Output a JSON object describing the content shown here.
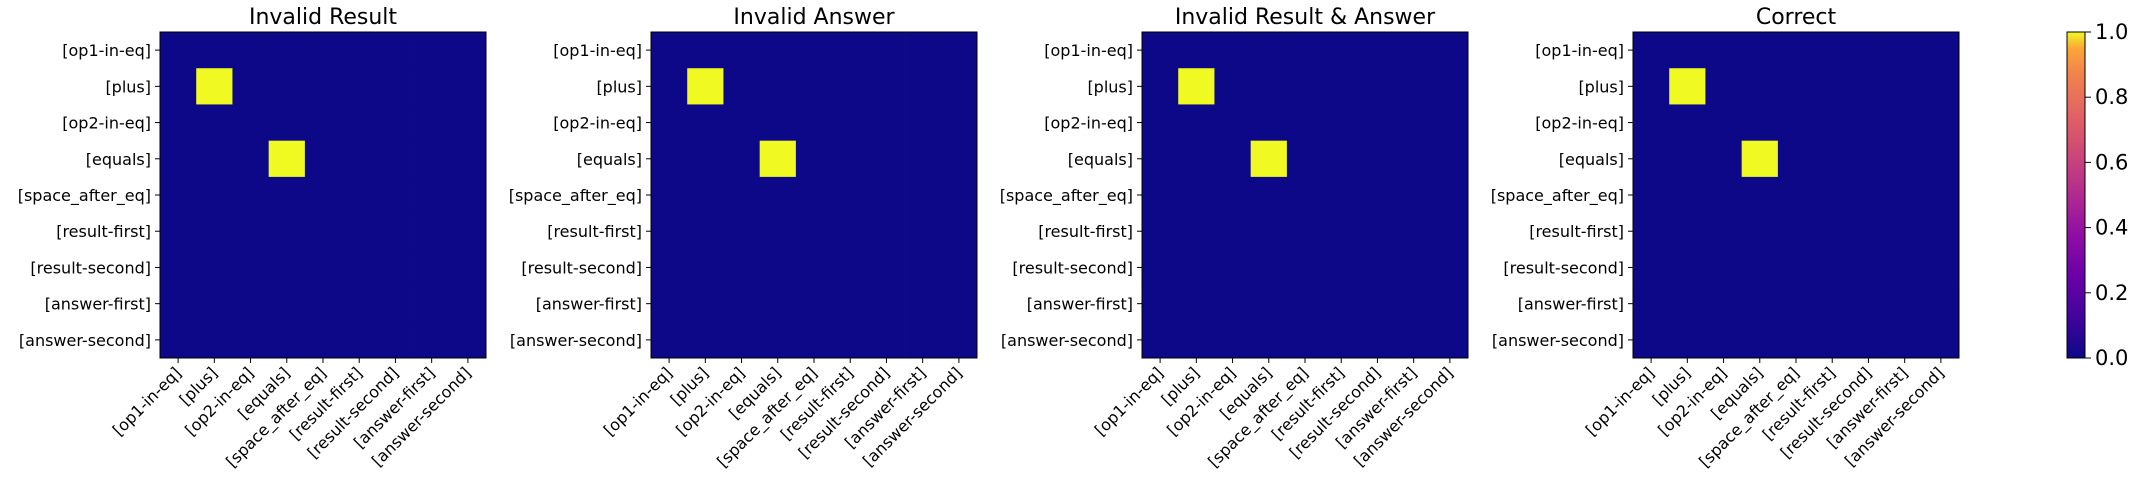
{
  "chart_data": {
    "type": "heatmap",
    "colormap": "plasma",
    "vmin": 0.0,
    "vmax": 1.0,
    "labels": [
      "[op1-in-eq]",
      "[plus]",
      "[op2-in-eq]",
      "[equals]",
      "[space_after_eq]",
      "[result-first]",
      "[result-second]",
      "[answer-first]",
      "[answer-second]"
    ],
    "colorbar": {
      "ticks": [
        "0.0",
        "0.2",
        "0.4",
        "0.6",
        "0.8",
        "1.0"
      ],
      "values": [
        0.0,
        0.2,
        0.4,
        0.6,
        0.8,
        1.0
      ]
    },
    "panels": [
      {
        "title": "Invalid Result",
        "matrix": [
          [
            0,
            0,
            0,
            0,
            0,
            0,
            0,
            0,
            0
          ],
          [
            0,
            1,
            0,
            0,
            0,
            0,
            0,
            0,
            0
          ],
          [
            0,
            0,
            0,
            0,
            0,
            0,
            0,
            0,
            0
          ],
          [
            0,
            0,
            0,
            1,
            0,
            0,
            0,
            0,
            0
          ],
          [
            0,
            0,
            0,
            0,
            0,
            0,
            0,
            0,
            0
          ],
          [
            0,
            0,
            0,
            0,
            0,
            0,
            0,
            0,
            0
          ],
          [
            0,
            0,
            0,
            0,
            0,
            0,
            0,
            0,
            0
          ],
          [
            0,
            0,
            0,
            0,
            0,
            0,
            0,
            0,
            0
          ],
          [
            0,
            0,
            0,
            0,
            0,
            0,
            0,
            0,
            0
          ]
        ]
      },
      {
        "title": "Invalid Answer",
        "matrix": [
          [
            0,
            0,
            0,
            0,
            0,
            0,
            0,
            0,
            0
          ],
          [
            0,
            1,
            0,
            0,
            0,
            0,
            0,
            0,
            0
          ],
          [
            0,
            0,
            0,
            0,
            0,
            0,
            0,
            0,
            0
          ],
          [
            0,
            0,
            0,
            1,
            0,
            0,
            0,
            0,
            0
          ],
          [
            0,
            0,
            0,
            0,
            0,
            0,
            0,
            0,
            0
          ],
          [
            0,
            0,
            0,
            0,
            0,
            0,
            0,
            0,
            0
          ],
          [
            0,
            0,
            0,
            0,
            0,
            0,
            0,
            0,
            0
          ],
          [
            0,
            0,
            0,
            0,
            0,
            0,
            0,
            0,
            0
          ],
          [
            0,
            0,
            0,
            0,
            0,
            0,
            0,
            0,
            0
          ]
        ]
      },
      {
        "title": "Invalid Result & Answer",
        "matrix": [
          [
            0,
            0,
            0,
            0,
            0,
            0,
            0,
            0,
            0
          ],
          [
            0,
            1,
            0,
            0,
            0,
            0,
            0,
            0,
            0
          ],
          [
            0,
            0,
            0,
            0,
            0,
            0,
            0,
            0,
            0
          ],
          [
            0,
            0,
            0,
            1,
            0,
            0,
            0,
            0,
            0
          ],
          [
            0,
            0,
            0,
            0,
            0,
            0,
            0,
            0,
            0
          ],
          [
            0,
            0,
            0,
            0,
            0,
            0,
            0,
            0,
            0
          ],
          [
            0,
            0,
            0,
            0,
            0,
            0,
            0,
            0,
            0
          ],
          [
            0,
            0,
            0,
            0,
            0,
            0,
            0,
            0,
            0
          ],
          [
            0,
            0,
            0,
            0,
            0,
            0,
            0,
            0,
            0
          ]
        ]
      },
      {
        "title": "Correct",
        "matrix": [
          [
            0,
            0,
            0,
            0,
            0,
            0,
            0,
            0,
            0
          ],
          [
            0,
            1,
            0,
            0,
            0,
            0,
            0,
            0,
            0
          ],
          [
            0,
            0,
            0,
            0,
            0,
            0,
            0,
            0,
            0
          ],
          [
            0,
            0,
            0,
            1,
            0,
            0,
            0,
            0,
            0
          ],
          [
            0,
            0,
            0,
            0,
            0,
            0,
            0,
            0,
            0
          ],
          [
            0,
            0,
            0,
            0,
            0,
            0,
            0,
            0,
            0
          ],
          [
            0,
            0,
            0,
            0,
            0,
            0,
            0,
            0,
            0
          ],
          [
            0,
            0,
            0,
            0,
            0,
            0,
            0,
            0,
            0
          ],
          [
            0,
            0,
            0,
            0,
            0,
            0,
            0,
            0,
            0
          ]
        ]
      }
    ]
  }
}
